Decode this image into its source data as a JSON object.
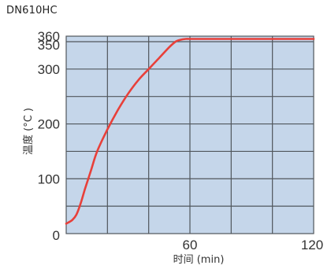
{
  "model_label": "DN610HC",
  "colors": {
    "plot_bg": "#c5d6ea",
    "grid": "#50565c",
    "curve": "#e8403a"
  },
  "chart_data": {
    "type": "line",
    "title": "",
    "xlabel": "时间 (min)",
    "ylabel": "温度 (°C )",
    "xlim": [
      0,
      120
    ],
    "ylim": [
      0,
      360
    ],
    "x_ticks": [
      "60",
      "120"
    ],
    "y_ticks": [
      "0",
      "100",
      "200",
      "300",
      "350",
      "360"
    ],
    "grid": true,
    "series": [
      {
        "x": [
          0,
          3,
          5,
          7,
          9,
          12,
          15,
          20,
          25,
          30,
          35,
          40,
          45,
          50,
          53,
          55,
          58,
          60,
          70,
          80,
          90,
          100,
          110,
          120
        ],
        "y": [
          18,
          25,
          35,
          55,
          80,
          115,
          150,
          190,
          225,
          255,
          280,
          300,
          320,
          340,
          350,
          353,
          355,
          355,
          355,
          355,
          355,
          355,
          355,
          355
        ]
      }
    ]
  }
}
